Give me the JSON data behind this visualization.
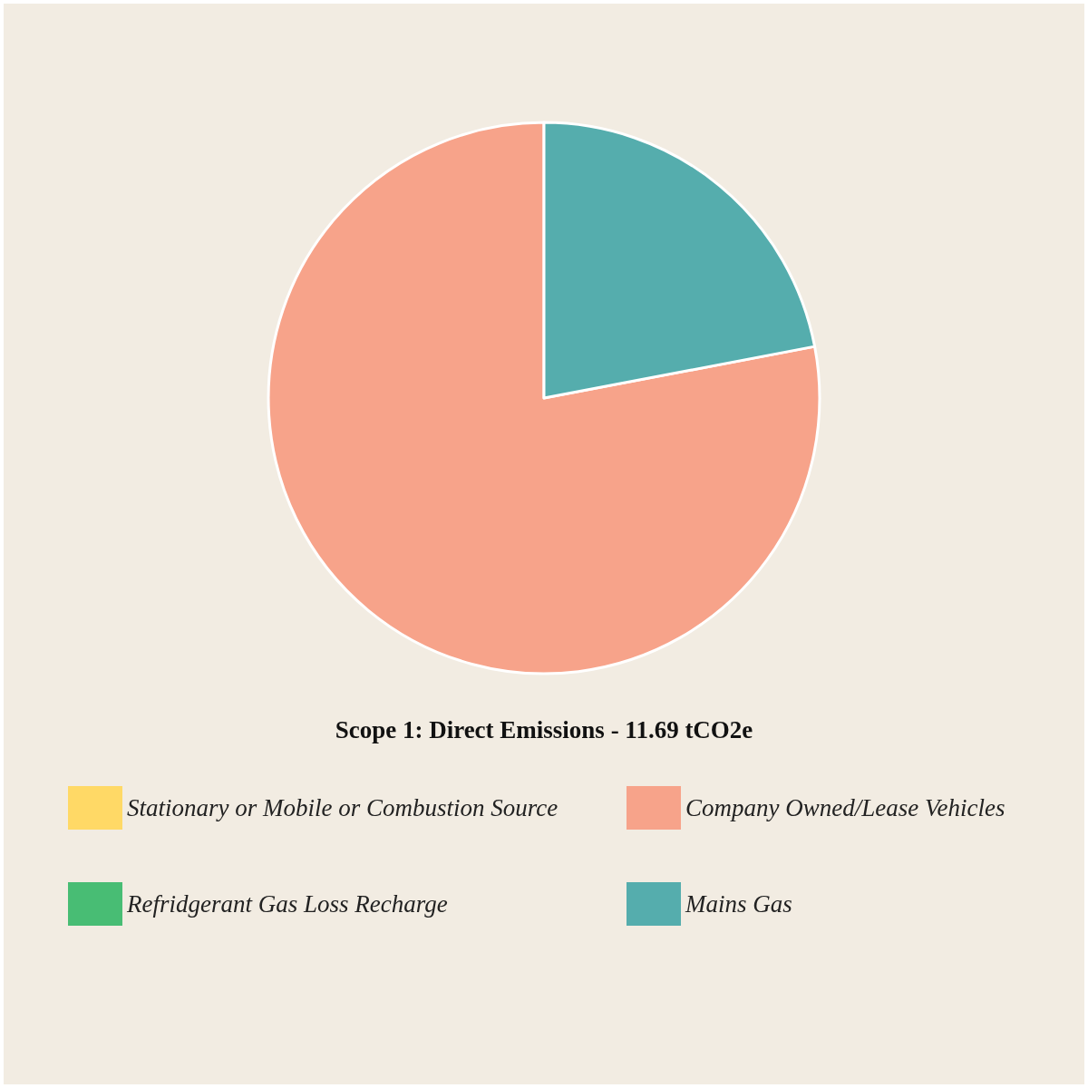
{
  "chart_data": {
    "type": "pie",
    "title": "Scope 1: Direct Emissions - 11.69 tCO2e",
    "categories": [
      "Stationary or Mobile or Combustion Source",
      "Company Owned/Lease Vehicles",
      "Refridgerant Gas Loss Recharge",
      "Mains Gas"
    ],
    "values": [
      0,
      78,
      0,
      22
    ],
    "colors": [
      "#ffd966",
      "#f7a38a",
      "#48bd74",
      "#55adad"
    ],
    "legend": "bottom"
  }
}
